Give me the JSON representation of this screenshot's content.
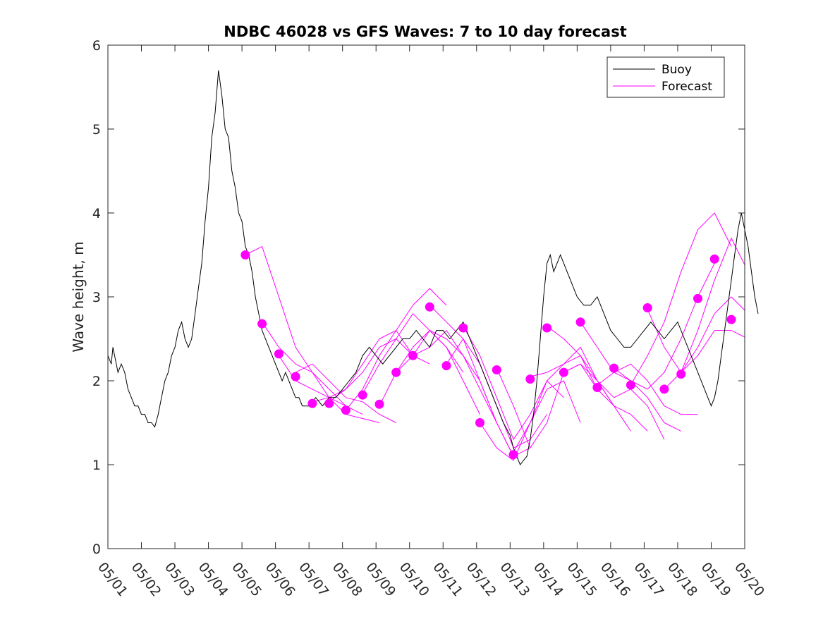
{
  "chart_data": {
    "type": "line",
    "title": "NDBC 46028 vs GFS Waves: 7 to 10 day forecast",
    "xlabel": "",
    "ylabel": "Wave height, m",
    "xlim": [
      0,
      19
    ],
    "ylim": [
      0,
      6
    ],
    "x_tick_labels": [
      "05/01",
      "05/02",
      "05/03",
      "05/04",
      "05/05",
      "05/06",
      "05/07",
      "05/08",
      "05/09",
      "05/10",
      "05/11",
      "05/12",
      "05/13",
      "05/14",
      "05/15",
      "05/16",
      "05/17",
      "05/18",
      "05/19",
      "05/20"
    ],
    "y_ticks": [
      0,
      1,
      2,
      3,
      4,
      5,
      6
    ],
    "legend": {
      "position": "top-right",
      "entries": [
        "Buoy",
        "Forecast"
      ]
    },
    "colors": {
      "buoy": "#000000",
      "forecast": "#ff00ff"
    },
    "series": [
      {
        "name": "Buoy",
        "x": [
          0.0,
          0.1,
          0.15,
          0.2,
          0.3,
          0.4,
          0.5,
          0.6,
          0.7,
          0.8,
          0.9,
          1.0,
          1.1,
          1.2,
          1.3,
          1.4,
          1.5,
          1.6,
          1.7,
          1.8,
          1.9,
          2.0,
          2.1,
          2.2,
          2.3,
          2.4,
          2.5,
          2.6,
          2.7,
          2.8,
          2.9,
          3.0,
          3.1,
          3.2,
          3.3,
          3.4,
          3.5,
          3.6,
          3.7,
          3.8,
          3.9,
          4.0,
          4.1,
          4.2,
          4.3,
          4.4,
          4.5,
          4.6,
          4.7,
          4.8,
          4.9,
          5.0,
          5.1,
          5.2,
          5.3,
          5.4,
          5.5,
          5.6,
          5.7,
          5.8,
          5.9,
          6.0,
          6.2,
          6.4,
          6.6,
          6.8,
          7.0,
          7.2,
          7.4,
          7.6,
          7.8,
          8.0,
          8.2,
          8.4,
          8.6,
          8.8,
          9.0,
          9.2,
          9.4,
          9.6,
          9.8,
          10.0,
          10.2,
          10.4,
          10.6,
          10.8,
          11.0,
          11.2,
          11.4,
          11.6,
          11.8,
          12.0,
          12.1,
          12.2,
          12.3,
          12.4,
          12.5,
          12.6,
          12.7,
          12.8,
          12.9,
          13.0,
          13.1,
          13.2,
          13.3,
          13.4,
          13.5,
          13.6,
          13.7,
          13.8,
          13.9,
          14.0,
          14.2,
          14.4,
          14.6,
          14.8,
          15.0,
          15.2,
          15.4,
          15.6,
          15.8,
          16.0,
          16.2,
          16.4,
          16.6,
          16.8,
          17.0,
          17.2,
          17.4,
          17.6,
          17.8,
          17.9,
          18.0,
          18.1,
          18.2,
          18.3,
          18.4,
          18.5,
          18.6,
          18.7,
          18.8,
          18.9,
          19.0,
          19.1,
          19.2,
          19.3,
          19.4
        ],
        "y": [
          2.3,
          2.2,
          2.4,
          2.3,
          2.1,
          2.2,
          2.1,
          1.9,
          1.8,
          1.7,
          1.7,
          1.6,
          1.6,
          1.5,
          1.5,
          1.45,
          1.6,
          1.8,
          2.0,
          2.1,
          2.3,
          2.4,
          2.6,
          2.7,
          2.5,
          2.4,
          2.5,
          2.8,
          3.1,
          3.4,
          3.9,
          4.3,
          4.9,
          5.2,
          5.7,
          5.4,
          5.0,
          4.9,
          4.5,
          4.3,
          4.0,
          3.9,
          3.6,
          3.5,
          3.3,
          3.0,
          2.8,
          2.6,
          2.5,
          2.4,
          2.3,
          2.2,
          2.1,
          2.0,
          2.1,
          2.0,
          1.9,
          1.8,
          1.8,
          1.7,
          1.7,
          1.7,
          1.8,
          1.7,
          1.8,
          1.8,
          1.9,
          2.0,
          2.1,
          2.3,
          2.4,
          2.3,
          2.2,
          2.3,
          2.4,
          2.5,
          2.5,
          2.6,
          2.5,
          2.4,
          2.6,
          2.6,
          2.5,
          2.6,
          2.7,
          2.5,
          2.3,
          2.1,
          1.9,
          1.7,
          1.5,
          1.35,
          1.2,
          1.1,
          1.0,
          1.05,
          1.1,
          1.3,
          1.6,
          2.0,
          2.5,
          3.0,
          3.4,
          3.5,
          3.3,
          3.4,
          3.5,
          3.4,
          3.3,
          3.2,
          3.1,
          3.0,
          2.9,
          2.9,
          3.0,
          2.8,
          2.6,
          2.5,
          2.4,
          2.4,
          2.5,
          2.6,
          2.7,
          2.6,
          2.5,
          2.6,
          2.7,
          2.5,
          2.3,
          2.1,
          1.9,
          1.8,
          1.7,
          1.8,
          2.0,
          2.3,
          2.6,
          2.9,
          3.2,
          3.5,
          3.8,
          4.0,
          3.8,
          3.6,
          3.3,
          3.0,
          2.8
        ]
      }
    ],
    "forecast_curves": [
      {
        "x": [
          4.1,
          4.6,
          5.1,
          5.6,
          6.1,
          6.6,
          7.1
        ],
        "y": [
          3.5,
          3.6,
          3.0,
          2.4,
          2.1,
          1.8,
          1.7
        ]
      },
      {
        "x": [
          4.6,
          5.1,
          5.6,
          6.1,
          6.6,
          7.1,
          7.6
        ],
        "y": [
          2.7,
          2.4,
          2.2,
          2.1,
          1.9,
          1.7,
          1.6
        ]
      },
      {
        "x": [
          5.1,
          5.6,
          6.1,
          6.6,
          7.1,
          7.6,
          8.1
        ],
        "y": [
          2.3,
          2.0,
          1.9,
          1.8,
          1.6,
          1.55,
          1.5
        ]
      },
      {
        "x": [
          5.6,
          6.1,
          6.6,
          7.1,
          7.6,
          8.1,
          8.6
        ],
        "y": [
          2.1,
          2.2,
          2.0,
          1.8,
          1.75,
          1.6,
          1.5
        ]
      },
      {
        "x": [
          6.1,
          6.6,
          7.1,
          7.6,
          8.1,
          8.6,
          9.1
        ],
        "y": [
          1.75,
          1.8,
          1.9,
          2.1,
          2.4,
          2.5,
          2.3
        ]
      },
      {
        "x": [
          6.6,
          7.1,
          7.6,
          8.1,
          8.6,
          9.1,
          9.6
        ],
        "y": [
          1.75,
          1.9,
          2.2,
          2.5,
          2.6,
          2.3,
          2.2
        ]
      },
      {
        "x": [
          7.1,
          7.6,
          8.1,
          8.6,
          9.1,
          9.6,
          10.1
        ],
        "y": [
          1.65,
          1.9,
          2.3,
          2.6,
          2.9,
          3.1,
          2.9
        ]
      },
      {
        "x": [
          7.6,
          8.1,
          8.6,
          9.1,
          9.6,
          10.1,
          10.6
        ],
        "y": [
          1.85,
          2.2,
          2.5,
          2.8,
          2.6,
          2.4,
          2.1
        ]
      },
      {
        "x": [
          8.1,
          8.6,
          9.1,
          9.6,
          10.1,
          10.6,
          11.1
        ],
        "y": [
          1.7,
          2.1,
          2.4,
          2.6,
          2.4,
          2.0,
          1.6
        ]
      },
      {
        "x": [
          8.6,
          9.1,
          9.6,
          10.1,
          10.6,
          11.1,
          11.6
        ],
        "y": [
          2.1,
          2.3,
          2.6,
          2.5,
          2.3,
          2.0,
          1.5
        ]
      },
      {
        "x": [
          9.1,
          9.6,
          10.1,
          10.6,
          11.1,
          11.6,
          12.1
        ],
        "y": [
          2.3,
          2.4,
          2.6,
          2.3,
          1.9,
          1.5,
          1.1
        ]
      },
      {
        "x": [
          9.6,
          10.1,
          10.6,
          11.1,
          11.6,
          12.1,
          12.6
        ],
        "y": [
          2.9,
          2.7,
          2.5,
          2.0,
          1.5,
          1.1,
          1.2
        ]
      },
      {
        "x": [
          10.1,
          10.6,
          11.1,
          11.6,
          12.1,
          12.6,
          13.1
        ],
        "y": [
          2.2,
          2.5,
          2.2,
          1.7,
          1.2,
          1.3,
          1.6
        ]
      },
      {
        "x": [
          10.6,
          11.1,
          11.6,
          12.1,
          12.6,
          13.1,
          13.6
        ],
        "y": [
          2.65,
          2.3,
          1.8,
          1.3,
          1.6,
          2.0,
          1.8
        ]
      },
      {
        "x": [
          11.1,
          11.6,
          12.1,
          12.6,
          13.1,
          13.6,
          14.1
        ],
        "y": [
          1.5,
          1.2,
          1.05,
          1.5,
          1.9,
          2.0,
          1.5
        ]
      },
      {
        "x": [
          11.6,
          12.1,
          12.6,
          13.1,
          13.6,
          14.1,
          14.6
        ],
        "y": [
          2.15,
          1.7,
          1.2,
          1.5,
          2.1,
          2.2,
          1.9
        ]
      },
      {
        "x": [
          12.1,
          12.6,
          13.1,
          13.6,
          14.1,
          14.6,
          15.1
        ],
        "y": [
          1.15,
          1.5,
          2.0,
          2.2,
          2.3,
          2.0,
          1.7
        ]
      },
      {
        "x": [
          12.6,
          13.1,
          13.6,
          14.1,
          14.6,
          15.1,
          15.6
        ],
        "y": [
          2.05,
          2.1,
          2.2,
          2.4,
          2.0,
          1.7,
          1.4
        ]
      },
      {
        "x": [
          13.1,
          13.6,
          14.1,
          14.6,
          15.1,
          15.6,
          16.1
        ],
        "y": [
          2.65,
          2.5,
          2.3,
          1.9,
          1.7,
          1.6,
          1.4
        ]
      },
      {
        "x": [
          13.6,
          14.1,
          14.6,
          15.1,
          15.6,
          16.1,
          16.6
        ],
        "y": [
          2.1,
          2.2,
          2.0,
          1.8,
          1.9,
          1.7,
          1.3
        ]
      },
      {
        "x": [
          14.1,
          14.6,
          15.1,
          15.6,
          16.1,
          16.6,
          17.1
        ],
        "y": [
          2.7,
          2.4,
          2.1,
          2.0,
          1.8,
          1.5,
          1.4
        ]
      },
      {
        "x": [
          14.6,
          15.1,
          15.6,
          16.1,
          16.6,
          17.1,
          17.6
        ],
        "y": [
          1.95,
          2.1,
          2.2,
          2.0,
          1.7,
          1.6,
          1.6
        ]
      },
      {
        "x": [
          15.1,
          15.6,
          16.1,
          16.6,
          17.1,
          17.6,
          18.1
        ],
        "y": [
          2.15,
          2.0,
          1.9,
          2.1,
          2.5,
          3.0,
          3.4
        ]
      },
      {
        "x": [
          15.6,
          16.1,
          16.6,
          17.1,
          17.6,
          18.1,
          18.6
        ],
        "y": [
          1.95,
          2.3,
          2.7,
          3.3,
          3.8,
          4.0,
          3.6
        ]
      },
      {
        "x": [
          16.1,
          16.6,
          17.1,
          17.6,
          18.1,
          18.6,
          19.1
        ],
        "y": [
          2.85,
          2.4,
          2.1,
          2.6,
          3.2,
          3.7,
          3.3
        ]
      },
      {
        "x": [
          16.6,
          17.1,
          17.6,
          18.1,
          18.6,
          19.1,
          19.6
        ],
        "y": [
          1.9,
          2.1,
          2.4,
          2.8,
          3.0,
          2.8,
          2.5
        ]
      },
      {
        "x": [
          17.1,
          17.6,
          18.1,
          18.6,
          19.1,
          19.6,
          20.1
        ],
        "y": [
          2.1,
          2.3,
          2.6,
          2.6,
          2.5,
          2.3,
          2.2
        ]
      }
    ],
    "forecast_points": {
      "x": [
        4.1,
        4.6,
        5.1,
        5.6,
        6.1,
        6.6,
        7.1,
        7.6,
        8.1,
        8.6,
        9.1,
        9.6,
        10.1,
        10.6,
        11.1,
        11.6,
        12.1,
        12.6,
        13.1,
        13.6,
        14.1,
        14.6,
        15.1,
        15.6,
        16.1,
        16.6,
        17.1,
        17.6,
        18.1,
        18.6
      ],
      "y": [
        3.5,
        2.68,
        2.32,
        2.05,
        1.73,
        1.73,
        1.65,
        1.83,
        1.72,
        2.1,
        2.3,
        2.88,
        2.18,
        2.63,
        1.5,
        2.13,
        1.12,
        2.02,
        2.63,
        2.1,
        2.7,
        1.92,
        2.15,
        1.95,
        2.87,
        1.9,
        2.08,
        2.98,
        3.45,
        2.73
      ]
    }
  }
}
